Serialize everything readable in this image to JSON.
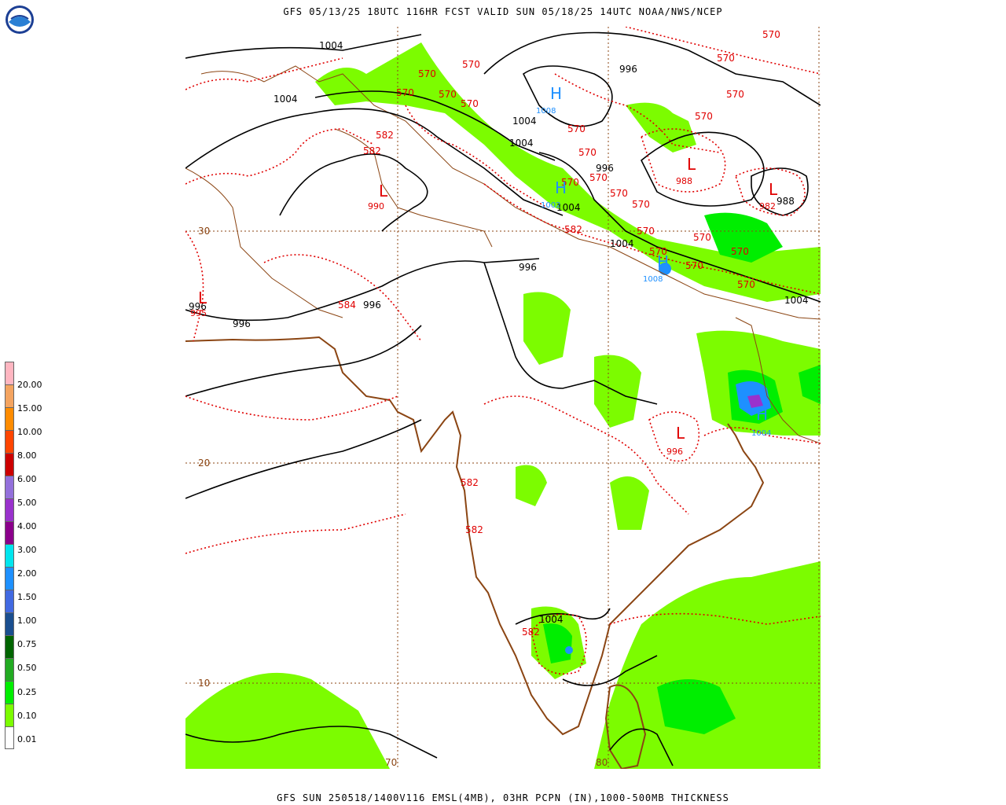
{
  "header": {
    "title": "GFS 05/13/25 18UTC 116HR FCST VALID SUN 05/18/25 14UTC NOAA/NWS/NCEP"
  },
  "footer": {
    "title": "GFS SUN 250518/1400V116 EMSL(4MB), 03HR PCPN (IN),1000-500MB THICKNESS"
  },
  "logo": {
    "text": "NOAA"
  },
  "legend": {
    "labels": [
      "20.00",
      "15.00",
      "10.00",
      "8.00",
      "6.00",
      "5.00",
      "4.00",
      "3.00",
      "2.00",
      "1.50",
      "1.00",
      "0.75",
      "0.50",
      "0.25",
      "0.10",
      "0.01"
    ],
    "colors": [
      "#ffb6c1",
      "#f4a460",
      "#ff8c00",
      "#ff4500",
      "#cc0000",
      "#9370db",
      "#9932cc",
      "#8b008b",
      "#00e5ee",
      "#1e90ff",
      "#4169e1",
      "#1a4e8f",
      "#006400",
      "#22aa22",
      "#00ee00",
      "#7cfc00",
      "#ffffff"
    ]
  },
  "map": {
    "lat_labels": [
      "30",
      "20",
      "10"
    ],
    "lon_labels": [
      "70",
      "80"
    ],
    "isobar_labels": [
      "1004",
      "1004",
      "1004",
      "996",
      "996",
      "996",
      "996",
      "996",
      "996",
      "988",
      "1004",
      "1004",
      "1004",
      "1004",
      "1004"
    ],
    "thickness_labels": [
      "570",
      "570",
      "570",
      "570",
      "570",
      "570",
      "570",
      "570",
      "570",
      "570",
      "570",
      "570",
      "570",
      "570",
      "570",
      "570",
      "570",
      "570",
      "570",
      "570",
      "570",
      "582",
      "582",
      "582",
      "582",
      "582",
      "582",
      "584"
    ],
    "low_labels": [
      "990",
      "988",
      "982",
      "995",
      "996"
    ],
    "high_labels": [
      "1008",
      "1002",
      "1008",
      "1004"
    ]
  }
}
